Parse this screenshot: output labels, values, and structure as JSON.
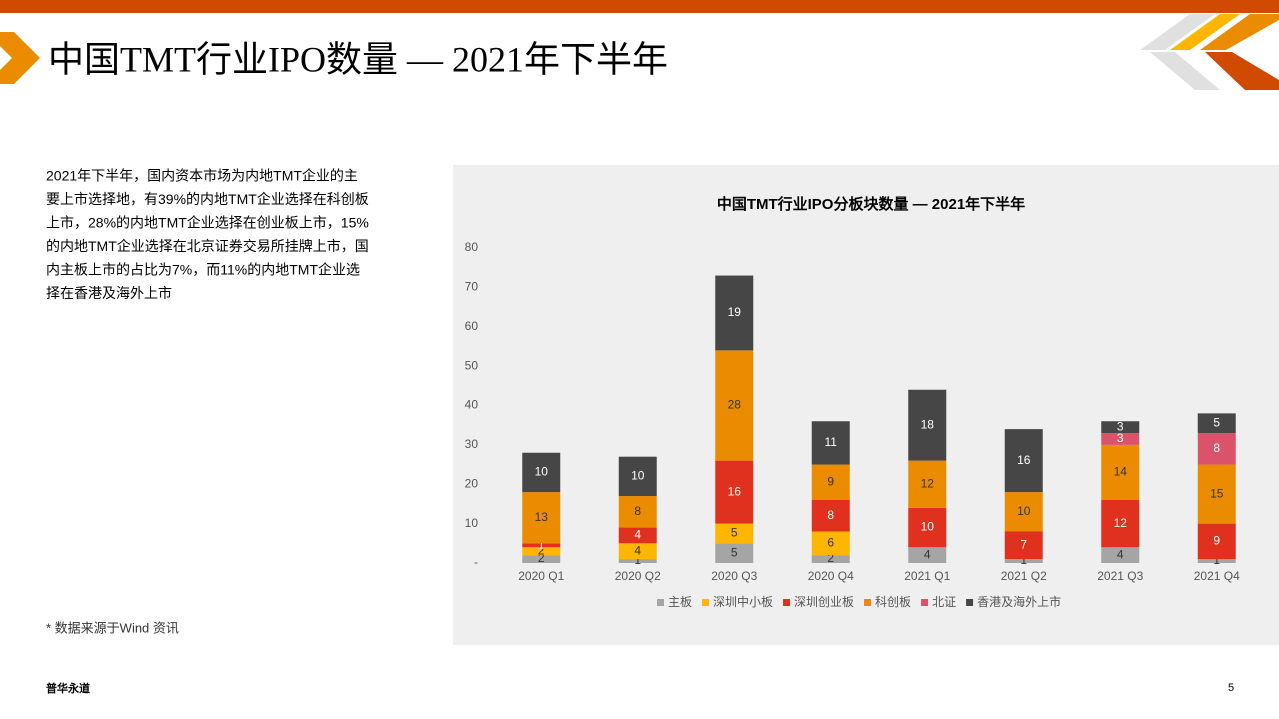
{
  "header": {
    "title": "中国TMT行业IPO数量 — 2021年下半年"
  },
  "body": {
    "lines": [
      "2021年下半年，国内资本市场为内地TMT企业的主",
      "要上市选择地，有39%的内地TMT企业选择在科创板",
      "上市，28%的内地TMT企业选择在创业板上市，15%",
      "的内地TMT企业选择在北京证券交易所挂牌上市，国",
      "内主板上市的占比为7%，而11%的内地TMT企业选",
      "择在香港及海外上市"
    ]
  },
  "footnote": "* 数据来源于Wind 资讯",
  "footer": {
    "company": "普华永道",
    "page": "5"
  },
  "chart_data": {
    "type": "stacked-bar",
    "title": "中国TMT行业IPO分板块数量 — 2021年下半年",
    "categories": [
      "2020 Q1",
      "2020 Q2",
      "2020 Q3",
      "2020 Q4",
      "2021 Q1",
      "2021 Q2",
      "2021 Q3",
      "2021 Q4"
    ],
    "series": [
      {
        "name": "主板",
        "color": "#a5a5a5",
        "values": [
          2,
          1,
          5,
          2,
          4,
          1,
          4,
          1
        ]
      },
      {
        "name": "深圳中小板",
        "color": "#ffb600",
        "values": [
          2,
          4,
          5,
          6,
          null,
          null,
          null,
          null
        ]
      },
      {
        "name": "深圳创业板",
        "color": "#e0301e",
        "values": [
          1,
          4,
          16,
          8,
          10,
          7,
          12,
          9
        ]
      },
      {
        "name": "科创板",
        "color": "#eb8c00",
        "values": [
          13,
          8,
          28,
          9,
          12,
          10,
          14,
          15
        ]
      },
      {
        "name": "北证",
        "color": "#db536a",
        "values": [
          null,
          null,
          null,
          null,
          null,
          null,
          3,
          8
        ]
      },
      {
        "name": "香港及海外上市",
        "color": "#464646",
        "values": [
          10,
          10,
          19,
          11,
          18,
          16,
          3,
          5
        ]
      }
    ],
    "ylim": [
      0,
      80
    ],
    "yticks": [
      {
        "value": 0,
        "label": "-"
      },
      10,
      20,
      30,
      40,
      50,
      60,
      70,
      80
    ],
    "legend": "bottom"
  }
}
